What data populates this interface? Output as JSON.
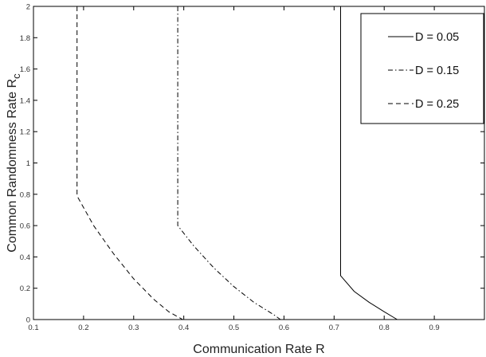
{
  "chart_data": {
    "type": "line",
    "title": "",
    "xlabel": "Communication Rate R",
    "ylabel_main": "Common Randomness Rate R",
    "ylabel_sub": "c",
    "xlim": [
      0.1,
      1.0
    ],
    "ylim": [
      0,
      2
    ],
    "xticks": [
      0.1,
      0.2,
      0.3,
      0.4,
      0.5,
      0.6,
      0.7,
      0.8,
      0.9
    ],
    "xtick_labels": [
      "0.1",
      "0.2",
      "0.3",
      "0.4",
      "0.5",
      "0.6",
      "0.7",
      "0.8",
      "0.9"
    ],
    "yticks": [
      0,
      0.2,
      0.4,
      0.6,
      0.8,
      1,
      1.2,
      1.4,
      1.6,
      1.8,
      2
    ],
    "ytick_labels": [
      "0",
      "0.2",
      "0.4",
      "0.6",
      "0.8",
      "1",
      "1.2",
      "1.4",
      "1.6",
      "1.8",
      "2"
    ],
    "grid": false,
    "legend_position": "top-right",
    "series": [
      {
        "name": "D = 0.05",
        "line_style": "solid",
        "points": [
          [
            0.713,
            2.0
          ],
          [
            0.713,
            0.28
          ],
          [
            0.74,
            0.18
          ],
          [
            0.77,
            0.11
          ],
          [
            0.8,
            0.05
          ],
          [
            0.826,
            0.0
          ]
        ]
      },
      {
        "name": "D = 0.15",
        "line_style": "dash-dot",
        "points": [
          [
            0.388,
            2.0
          ],
          [
            0.388,
            0.6
          ],
          [
            0.42,
            0.47
          ],
          [
            0.46,
            0.33
          ],
          [
            0.5,
            0.21
          ],
          [
            0.54,
            0.11
          ],
          [
            0.58,
            0.03
          ],
          [
            0.593,
            0.0
          ]
        ]
      },
      {
        "name": "D = 0.25",
        "line_style": "dashed",
        "points": [
          [
            0.187,
            2.0
          ],
          [
            0.187,
            0.79
          ],
          [
            0.22,
            0.6
          ],
          [
            0.26,
            0.42
          ],
          [
            0.3,
            0.26
          ],
          [
            0.34,
            0.13
          ],
          [
            0.37,
            0.05
          ],
          [
            0.398,
            0.0
          ]
        ]
      }
    ],
    "colors": {
      "line": "#000000",
      "axis": "#000000",
      "text": "#333333"
    }
  }
}
